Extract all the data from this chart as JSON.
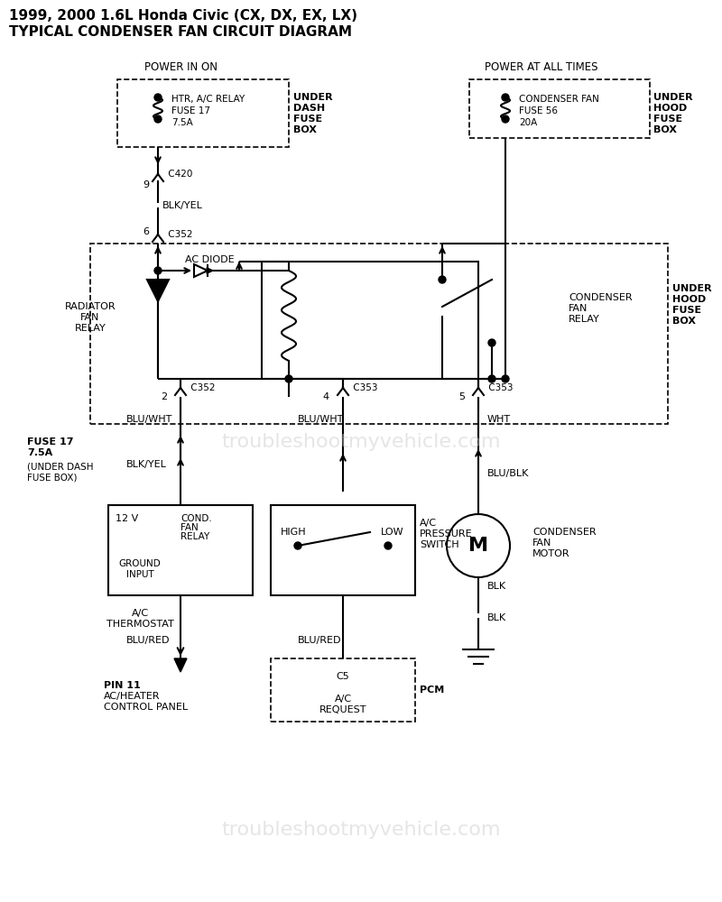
{
  "title_line1": "1999, 2000 1.6L Honda Civic (CX, DX, EX, LX)",
  "title_line2": "TYPICAL CONDENSER FAN CIRCUIT DIAGRAM",
  "watermark": "troubleshootmyvehicle.com",
  "bg_color": "#ffffff",
  "line_color": "#000000",
  "dashed_color": "#000000",
  "text_color": "#000000",
  "gray_text": "#aaaaaa"
}
